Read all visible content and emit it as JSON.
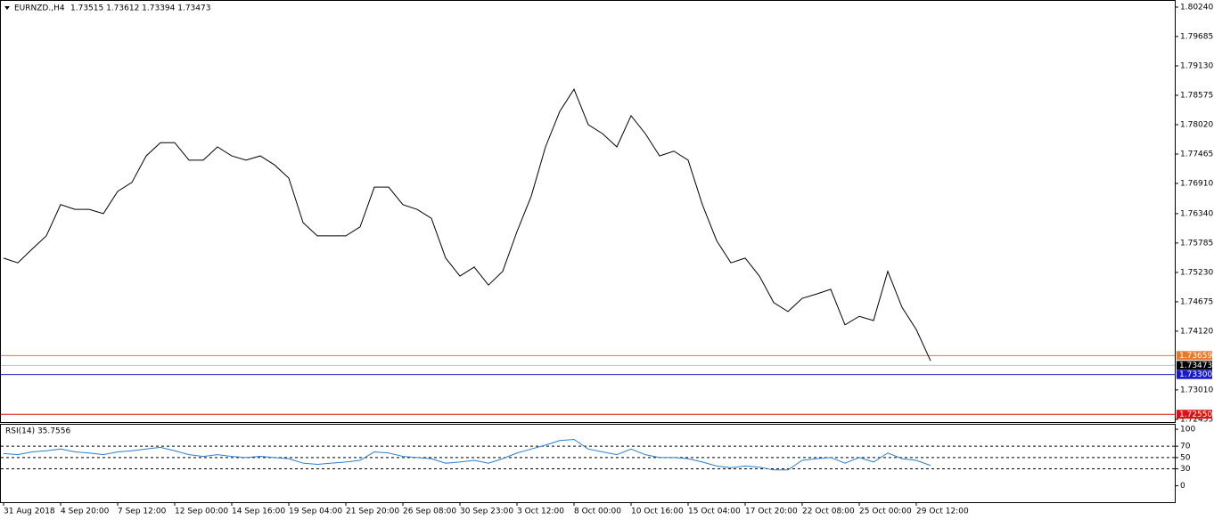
{
  "chart_data": [
    {
      "type": "line",
      "title": "EURNZD.,H4",
      "subtitle": "1.73515 1.73612 1.73394 1.73473",
      "categories": [
        "31 Aug 2018",
        null,
        null,
        null,
        "4 Sep 20:00",
        null,
        null,
        null,
        "7 Sep 12:00",
        null,
        null,
        null,
        "12 Sep 00:00",
        null,
        null,
        null,
        "14 Sep 16:00",
        null,
        null,
        null,
        "19 Sep 04:00",
        null,
        null,
        null,
        "21 Sep 20:00",
        null,
        null,
        null,
        "26 Sep 08:00",
        null,
        null,
        null,
        "30 Sep 23:00",
        null,
        null,
        null,
        "3 Oct 12:00",
        null,
        null,
        null,
        "8 Oct 00:00",
        null,
        null,
        null,
        "10 Oct 16:00",
        null,
        null,
        null,
        "15 Oct 04:00",
        null,
        null,
        null,
        "17 Oct 20:00",
        null,
        null,
        null,
        "22 Oct 08:00",
        null,
        null,
        null,
        "25 Oct 00:00",
        null,
        null,
        null,
        "29 Oct 12:00",
        null
      ],
      "series": [
        {
          "color": "#000000",
          "values": [
            1.755,
            1.7541,
            1.7567,
            1.7592,
            1.7651,
            1.7642,
            1.7642,
            1.7634,
            1.7676,
            1.7693,
            1.7743,
            1.7768,
            1.7768,
            1.7735,
            1.7735,
            1.776,
            1.7743,
            1.7735,
            1.7743,
            1.7726,
            1.7701,
            1.7617,
            1.7592,
            1.7592,
            1.7592,
            1.7609,
            1.7684,
            1.7684,
            1.7651,
            1.7642,
            1.7625,
            1.755,
            1.7516,
            1.7533,
            1.7499,
            1.7525,
            1.76,
            1.7667,
            1.776,
            1.7827,
            1.7869,
            1.7802,
            1.7785,
            1.776,
            1.7819,
            1.7785,
            1.7743,
            1.7752,
            1.7735,
            1.7651,
            1.7583,
            1.7541,
            1.755,
            1.7516,
            1.7466,
            1.7449,
            1.7474,
            1.7482,
            1.7491,
            1.7424,
            1.744,
            1.7432,
            1.7525,
            1.7457,
            1.7415,
            1.7356
          ]
        }
      ],
      "ylim": [
        1.72403,
        1.80341
      ],
      "yticks": [
        {
          "value": 1.8024,
          "label": "1.80240"
        },
        {
          "value": 1.79685,
          "label": "1.79685"
        },
        {
          "value": 1.7913,
          "label": "1.79130"
        },
        {
          "value": 1.78575,
          "label": "1.78575"
        },
        {
          "value": 1.7802,
          "label": "1.78020"
        },
        {
          "value": 1.77465,
          "label": "1.77465"
        },
        {
          "value": 1.7691,
          "label": "1.76910"
        },
        {
          "value": 1.7634,
          "label": "1.76340"
        },
        {
          "value": 1.75785,
          "label": "1.75785"
        },
        {
          "value": 1.7523,
          "label": "1.75230"
        },
        {
          "value": 1.74675,
          "label": "1.74675"
        },
        {
          "value": 1.7412,
          "label": "1.74120"
        },
        {
          "value": 1.7301,
          "label": "1.73010"
        },
        {
          "value": 1.72455,
          "label": "1.72455"
        }
      ],
      "price_lines": [
        {
          "value": 1.73659,
          "label": "1.73659",
          "color": "#e8782a"
        },
        {
          "value": 1.73473,
          "label": "1.73473",
          "color": "#c0c0c0"
        },
        {
          "value": 1.733,
          "label": "1.73300",
          "color": "#1a1acd"
        },
        {
          "value": 1.7255,
          "label": "1.72550",
          "color": "#e01010"
        }
      ]
    },
    {
      "type": "line",
      "title": "RSI(14) 35.7556",
      "series": [
        {
          "color": "#2a7fd0",
          "values": [
            57,
            55,
            60,
            62,
            65,
            60,
            58,
            55,
            60,
            62,
            65,
            68,
            62,
            55,
            52,
            55,
            52,
            50,
            52,
            50,
            48,
            40,
            38,
            40,
            42,
            45,
            60,
            58,
            52,
            50,
            48,
            40,
            42,
            45,
            40,
            48,
            58,
            65,
            72,
            80,
            82,
            65,
            60,
            55,
            65,
            55,
            50,
            50,
            48,
            42,
            35,
            32,
            35,
            33,
            28,
            28,
            45,
            48,
            50,
            40,
            50,
            42,
            58,
            48,
            45,
            36
          ]
        }
      ],
      "ylim": [
        -29,
        108
      ],
      "yticks": [
        0,
        30,
        50,
        70,
        100
      ],
      "levels": [
        30,
        50,
        70
      ]
    }
  ]
}
